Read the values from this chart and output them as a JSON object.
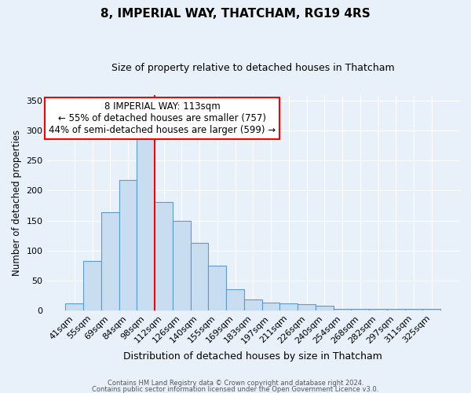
{
  "title": "8, IMPERIAL WAY, THATCHAM, RG19 4RS",
  "subtitle": "Size of property relative to detached houses in Thatcham",
  "xlabel": "Distribution of detached houses by size in Thatcham",
  "ylabel": "Number of detached properties",
  "bar_labels": [
    "41sqm",
    "55sqm",
    "69sqm",
    "84sqm",
    "98sqm",
    "112sqm",
    "126sqm",
    "140sqm",
    "155sqm",
    "169sqm",
    "183sqm",
    "197sqm",
    "211sqm",
    "226sqm",
    "240sqm",
    "254sqm",
    "268sqm",
    "282sqm",
    "297sqm",
    "311sqm",
    "325sqm"
  ],
  "bar_heights": [
    11,
    83,
    164,
    218,
    286,
    181,
    150,
    113,
    75,
    35,
    18,
    13,
    12,
    10,
    8,
    2,
    2,
    2,
    2,
    2,
    2
  ],
  "bar_color": "#c9ddf0",
  "bar_edge_color": "#5b9bd5",
  "property_line_index": 5,
  "property_line_color": "red",
  "annotation_title": "8 IMPERIAL WAY: 113sqm",
  "annotation_line1": "← 55% of detached houses are smaller (757)",
  "annotation_line2": "44% of semi-detached houses are larger (599) →",
  "annotation_box_color": "white",
  "annotation_box_edge_color": "red",
  "ylim": [
    0,
    360
  ],
  "yticks": [
    0,
    50,
    100,
    150,
    200,
    250,
    300,
    350
  ],
  "footer1": "Contains HM Land Registry data © Crown copyright and database right 2024.",
  "footer2": "Contains public sector information licensed under the Open Government Licence v3.0.",
  "background_color": "#e8f1fa",
  "plot_bg_color": "#e8f1fa",
  "title_fontsize": 11,
  "subtitle_fontsize": 9
}
